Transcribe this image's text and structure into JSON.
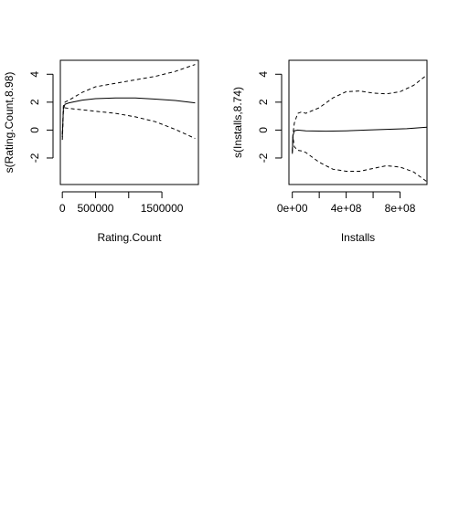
{
  "chart_data": [
    {
      "type": "line",
      "xlabel": "Rating.Count",
      "ylabel": "s(Rating.Count,8.98)",
      "xlim": [
        -30000,
        2050000
      ],
      "ylim": [
        -3.9,
        5.0
      ],
      "xticks": [
        0,
        500000,
        1000000,
        1500000
      ],
      "xtick_labels": [
        "0",
        "500000",
        "",
        "1500000"
      ],
      "yticks": [
        -2,
        0,
        2,
        4
      ],
      "ytick_labels": [
        "-2",
        "0",
        "2",
        "4"
      ],
      "grid": false,
      "legend": "none",
      "series": [
        {
          "style": "solid",
          "x": [
            0,
            15000,
            40000,
            100000,
            300000,
            500000,
            800000,
            1100000,
            1400000,
            1700000,
            2000000
          ],
          "y": [
            -0.5,
            1.5,
            1.85,
            1.95,
            2.15,
            2.25,
            2.3,
            2.3,
            2.22,
            2.12,
            1.95
          ]
        },
        {
          "style": "dashed",
          "x": [
            0,
            15000,
            40000,
            100000,
            300000,
            500000,
            800000,
            1100000,
            1400000,
            1700000,
            2000000
          ],
          "y": [
            -0.3,
            1.7,
            2.0,
            2.15,
            2.7,
            3.1,
            3.35,
            3.6,
            3.85,
            4.2,
            4.7
          ]
        },
        {
          "style": "dashed",
          "x": [
            0,
            15000,
            40000,
            100000,
            300000,
            500000,
            800000,
            1100000,
            1400000,
            1700000,
            2000000
          ],
          "y": [
            -0.7,
            1.3,
            1.6,
            1.55,
            1.45,
            1.35,
            1.2,
            0.95,
            0.6,
            0.05,
            -0.6
          ]
        }
      ]
    },
    {
      "type": "line",
      "xlabel": "Installs",
      "ylabel": "s(Installs,8.74)",
      "xlim": [
        -25000000,
        1000000000
      ],
      "ylim": [
        -3.9,
        5.0
      ],
      "xticks": [
        0,
        200000000,
        400000000,
        600000000,
        800000000
      ],
      "xtick_labels": [
        "0e+00",
        "",
        "4e+08",
        "",
        "8e+08"
      ],
      "yticks": [
        -2,
        0,
        2,
        4
      ],
      "ytick_labels": [
        "-2",
        "0",
        "2",
        "4"
      ],
      "grid": false,
      "legend": "none",
      "series": [
        {
          "style": "solid",
          "x": [
            0,
            5000000,
            15000000,
            40000000,
            100000000,
            250000000,
            400000000,
            550000000,
            700000000,
            850000000,
            1000000000
          ],
          "y": [
            -1.6,
            -0.4,
            -0.05,
            0.0,
            -0.05,
            -0.08,
            -0.05,
            0.0,
            0.05,
            0.1,
            0.2
          ]
        },
        {
          "style": "dashed",
          "x": [
            0,
            5000000,
            15000000,
            40000000,
            70000000,
            100000000,
            200000000,
            300000000,
            400000000,
            500000000,
            600000000,
            700000000,
            800000000,
            900000000,
            1000000000
          ],
          "y": [
            -1.5,
            -0.3,
            0.5,
            1.2,
            1.3,
            1.2,
            1.6,
            2.3,
            2.75,
            2.8,
            2.65,
            2.6,
            2.75,
            3.2,
            3.95
          ]
        },
        {
          "style": "dashed",
          "x": [
            0,
            5000000,
            15000000,
            40000000,
            70000000,
            100000000,
            200000000,
            300000000,
            400000000,
            500000000,
            600000000,
            700000000,
            800000000,
            900000000,
            1000000000
          ],
          "y": [
            -1.7,
            -0.5,
            -1.2,
            -1.45,
            -1.5,
            -1.6,
            -2.3,
            -2.8,
            -2.95,
            -2.95,
            -2.75,
            -2.55,
            -2.65,
            -3.0,
            -3.7
          ]
        }
      ]
    }
  ]
}
